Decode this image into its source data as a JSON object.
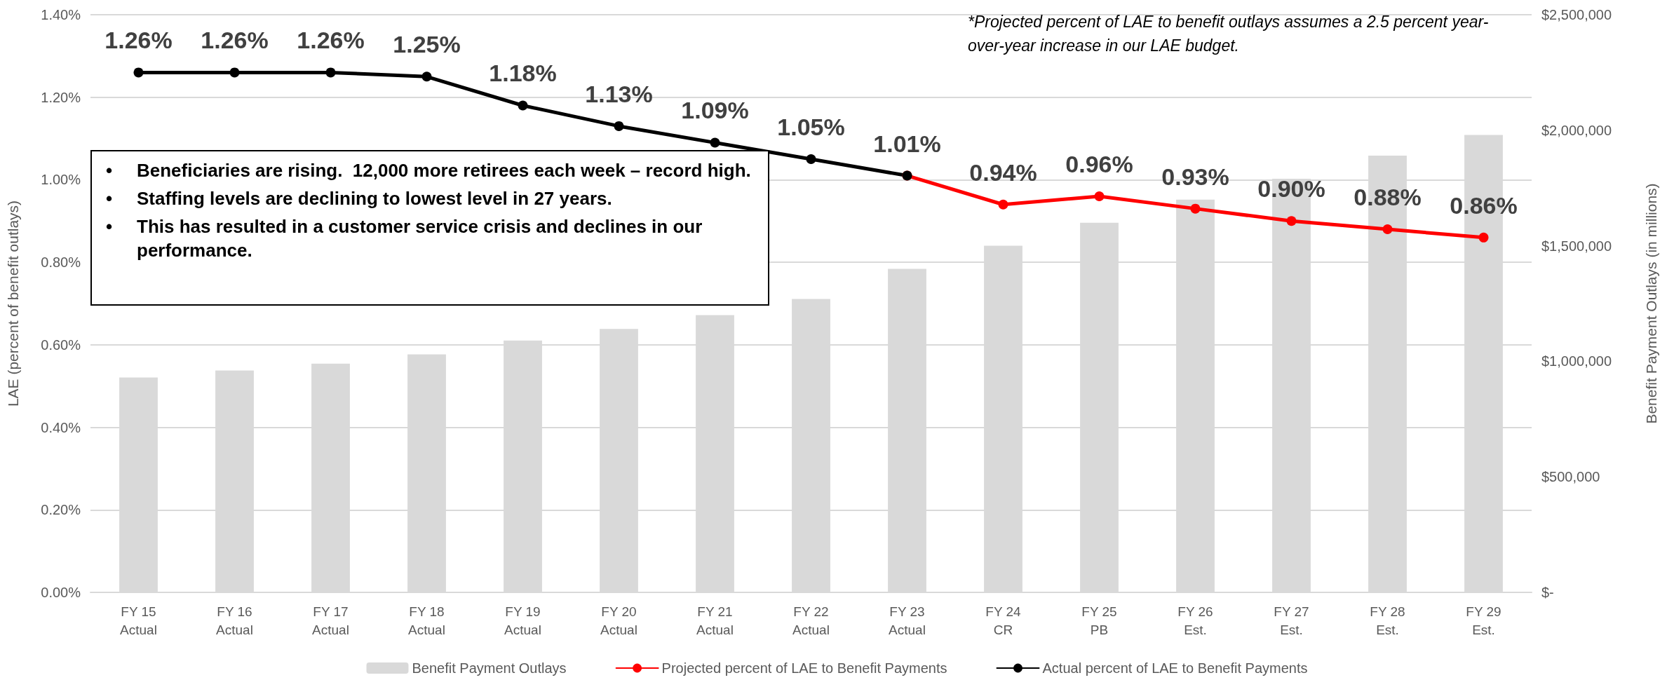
{
  "chart_data": {
    "type": "bar",
    "categories": [
      "FY 15\nActual",
      "FY 16\nActual",
      "FY 17\nActual",
      "FY 18\nActual",
      "FY 19\nActual",
      "FY 20\nActual",
      "FY 21\nActual",
      "FY 22\nActual",
      "FY 23\nActual",
      "FY 24\nCR",
      "FY 25\nPB",
      "FY 26\nEst.",
      "FY 27\nEst.",
      "FY 28\nEst.",
      "FY 29\nEst."
    ],
    "ylabel": "LAE (percent of benefit outlays)",
    "y2label": "Benefit Payment Outlays (in millions)",
    "ylim": [
      0,
      1.4
    ],
    "yticks": [
      {
        "value": 0,
        "label": "0.00%"
      },
      {
        "value": 0.2,
        "label": "0.20%"
      },
      {
        "value": 0.4,
        "label": "0.40%"
      },
      {
        "value": 0.6,
        "label": "0.60%"
      },
      {
        "value": 0.8,
        "label": "0.80%"
      },
      {
        "value": 1.0,
        "label": "1.00%"
      },
      {
        "value": 1.2,
        "label": "1.20%"
      },
      {
        "value": 1.4,
        "label": "1.40%"
      }
    ],
    "y2lim": [
      0,
      2500000
    ],
    "y2ticks": [
      {
        "value": 0,
        "label": "$-"
      },
      {
        "value": 500000,
        "label": "$500,000"
      },
      {
        "value": 1000000,
        "label": "$1,000,000"
      },
      {
        "value": 1500000,
        "label": "$1,500,000"
      },
      {
        "value": 2000000,
        "label": "$2,000,000"
      },
      {
        "value": 2500000,
        "label": "$2,500,000"
      }
    ],
    "series": [
      {
        "axis": "y2",
        "name": "Benefit Payment Outlays",
        "color": "#d9d9d9",
        "values": [
          930000,
          960000,
          990000,
          1030000,
          1090000,
          1140000,
          1200000,
          1270000,
          1400000,
          1500000,
          1600000,
          1700000,
          1790000,
          1890000,
          1980000
        ]
      },
      {
        "type": "line",
        "name": "Projected percent of LAE to Benefit Payments",
        "color": "#ff0000",
        "values": [
          null,
          null,
          null,
          null,
          null,
          null,
          null,
          null,
          1.01,
          0.94,
          0.96,
          0.93,
          0.9,
          0.88,
          0.86
        ],
        "value_labels": [
          null,
          null,
          null,
          null,
          null,
          null,
          null,
          null,
          null,
          "0.94%",
          "0.96%",
          "0.93%",
          "0.90%",
          "0.88%",
          "0.86%"
        ]
      },
      {
        "type": "line",
        "name": "Actual percent of LAE to Benefit Payments",
        "color": "#000000",
        "values": [
          1.26,
          1.26,
          1.26,
          1.25,
          1.18,
          1.13,
          1.09,
          1.05,
          1.01,
          null,
          null,
          null,
          null,
          null,
          null
        ],
        "value_labels": [
          "1.26%",
          "1.26%",
          "1.26%",
          "1.25%",
          "1.18%",
          "1.13%",
          "1.09%",
          "1.05%",
          "1.01%",
          null,
          null,
          null,
          null,
          null,
          null
        ]
      }
    ],
    "marker": "circle",
    "line_style": "solid",
    "grid": "y",
    "legend": "bottom",
    "annotations": [
      "*Projected percent of LAE to benefit outlays assumes a 2.5 percent year-over-year increase in our LAE budget.",
      "• Beneficiaries are rising.  12,000 more retirees each week – record high.",
      "• Staffing levels are declining to lowest level in 27 years.",
      "• This has resulted in a customer service crisis and declines in our performance."
    ]
  }
}
